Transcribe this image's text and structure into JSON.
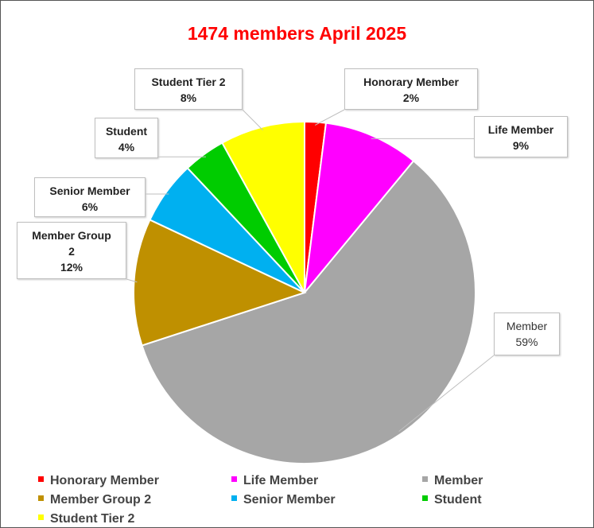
{
  "chart_data": {
    "type": "pie",
    "title": "1474 members April 2025",
    "categories": [
      "Honorary Member",
      "Life Member",
      "Member",
      "Member Group 2",
      "Senior Member",
      "Student",
      "Student Tier 2"
    ],
    "values": [
      2,
      9,
      59,
      12,
      6,
      4,
      8
    ],
    "value_labels": [
      "2%",
      "9%",
      "59%",
      "12%",
      "6%",
      "4%",
      "8%"
    ],
    "colors": [
      "#ff0000",
      "#ff00ff",
      "#a6a6a6",
      "#bf9000",
      "#00b0f0",
      "#00cc00",
      "#ffff00"
    ],
    "legend": "bottom"
  }
}
